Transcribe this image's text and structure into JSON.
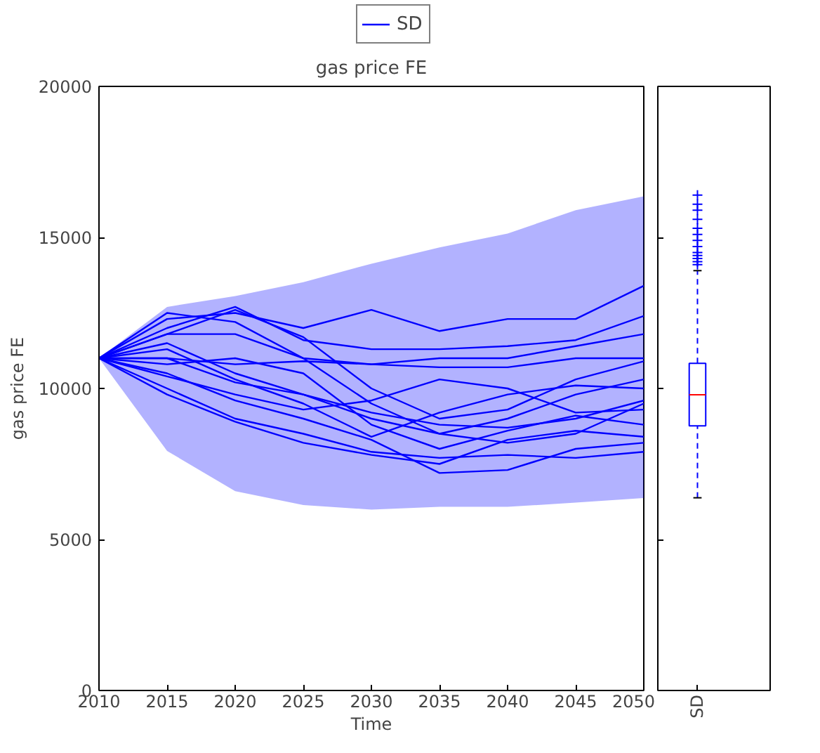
{
  "chart_data": [
    {
      "type": "line",
      "title": "gas price FE",
      "xlabel": "Time",
      "ylabel": "gas price FE",
      "xlim": [
        2010,
        2050
      ],
      "xticks": [
        2010,
        2015,
        2020,
        2025,
        2030,
        2035,
        2040,
        2045,
        2050
      ],
      "ylim": [
        0,
        20000
      ],
      "yticks": [
        0,
        5000,
        10000,
        15000,
        20000
      ],
      "grid": false,
      "legend": "top",
      "marker": "none",
      "line_style": "solid",
      "x": [
        2010,
        2015,
        2020,
        2025,
        2030,
        2035,
        2040,
        2045,
        2050
      ],
      "series": [
        {
          "name": "SD",
          "color": "#0000ff",
          "values": [
            11000,
            12300,
            12500,
            12000,
            12600,
            11900,
            12300,
            12300,
            13400
          ],
          "lower": [
            11000,
            7930,
            6600,
            6140,
            5990,
            6080,
            6080,
            6220,
            6370
          ],
          "upper": [
            11000,
            12700,
            13060,
            13520,
            14130,
            14670,
            15130,
            15900,
            16360
          ]
        },
        {
          "color": "#0000ff",
          "values": [
            11000,
            12000,
            12700,
            11600,
            11300,
            11300,
            11400,
            11600,
            12400
          ]
        },
        {
          "color": "#0000ff",
          "values": [
            11000,
            11800,
            11800,
            11000,
            10800,
            11000,
            11000,
            11400,
            11800
          ]
        },
        {
          "color": "#0000ff",
          "values": [
            11000,
            11000,
            10800,
            10900,
            10800,
            10700,
            10700,
            11000,
            11000
          ]
        },
        {
          "color": "#0000ff",
          "values": [
            11000,
            12500,
            12200,
            11000,
            9500,
            8500,
            9000,
            9800,
            10300
          ]
        },
        {
          "color": "#0000ff",
          "values": [
            11000,
            11500,
            10500,
            9800,
            9000,
            8500,
            8200,
            8500,
            9500
          ]
        },
        {
          "color": "#0000ff",
          "values": [
            11000,
            10500,
            9600,
            9000,
            8300,
            7200,
            7300,
            8000,
            8200
          ]
        },
        {
          "color": "#0000ff",
          "values": [
            11000,
            10000,
            9000,
            8500,
            7900,
            7700,
            7800,
            7700,
            7900
          ]
        },
        {
          "color": "#0000ff",
          "values": [
            11000,
            11000,
            10200,
            9800,
            9200,
            8800,
            8700,
            9000,
            9600
          ]
        },
        {
          "color": "#0000ff",
          "values": [
            11000,
            10800,
            11000,
            10500,
            8800,
            8000,
            8600,
            9100,
            8800
          ]
        },
        {
          "color": "#0000ff",
          "values": [
            11000,
            9800,
            8900,
            8200,
            7800,
            7500,
            8300,
            8600,
            8400
          ]
        },
        {
          "color": "#0000ff",
          "values": [
            11000,
            11800,
            12600,
            11700,
            10000,
            9000,
            9300,
            10300,
            10900
          ]
        },
        {
          "color": "#0000ff",
          "values": [
            11000,
            11300,
            10300,
            9500,
            8400,
            9200,
            9800,
            10100,
            10000
          ]
        },
        {
          "color": "#0000ff",
          "values": [
            11000,
            10400,
            9800,
            9300,
            9600,
            10300,
            10000,
            9200,
            9300
          ]
        }
      ]
    },
    {
      "type": "box",
      "categories": [
        "SD"
      ],
      "ylim": [
        0,
        20000
      ],
      "yticks": [
        0,
        5000,
        10000,
        15000,
        20000
      ],
      "tick_labels": "x",
      "grid": false,
      "series": [
        {
          "color": "#0000ff",
          "boxes": [
            {
              "low": 6380,
              "q1": 8760,
              "median": 9790,
              "q3": 10830,
              "high": 13900,
              "outliers": [
                14100,
                14200,
                14300,
                14400,
                14500,
                14700,
                14900,
                15100,
                15300,
                15600,
                15900,
                16100,
                16400
              ]
            }
          ]
        }
      ]
    }
  ]
}
